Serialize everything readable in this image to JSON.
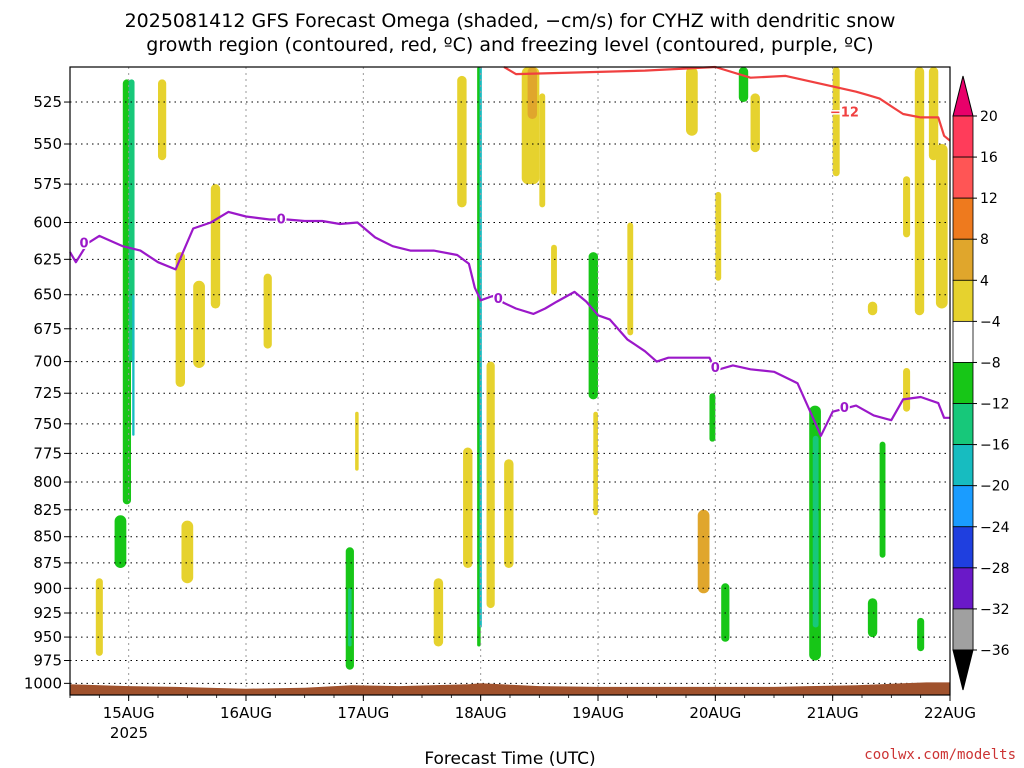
{
  "chart_data": {
    "type": "heatmap",
    "title_lines": [
      "2025081412 GFS Forecast Omega (shaded, −cm/s) for CYHZ with dendritic snow",
      "growth region (contoured, red, ºC) and freezing level (contoured, purple, ºC)"
    ],
    "xlabel": "Forecast Time (UTC)",
    "x_ticks": [
      "15AUG",
      "16AUG",
      "17AUG",
      "18AUG",
      "19AUG",
      "20AUG",
      "21AUG",
      "22AUG"
    ],
    "x_tick_sublabel": "2025",
    "x_range_days": [
      14.5,
      22.0
    ],
    "y_ticks": [
      525,
      550,
      575,
      600,
      625,
      650,
      675,
      700,
      725,
      750,
      775,
      800,
      825,
      850,
      875,
      900,
      925,
      950,
      975,
      1000
    ],
    "y_range_hpa": [
      505,
      1013
    ],
    "y_scale": "log-pressure",
    "grid": true,
    "colorbar": {
      "levels": [
        "20",
        "16",
        "12",
        "8",
        "4",
        "−4",
        "−8",
        "−12",
        "−16",
        "−20",
        "−24",
        "−28",
        "−32",
        "−36"
      ],
      "colors": [
        "#ff3c5a",
        "#ff5555",
        "#ee7a1e",
        "#e0a62c",
        "#e6d22e",
        "#ffffff",
        "#17c617",
        "#17c87a",
        "#17bcc0",
        "#1a9cff",
        "#1f3fdf",
        "#6a19c8",
        "#a010c0",
        "#a0a0a0",
        "#000000"
      ],
      "top_arrow_color": "#e8006a",
      "bottom_arrow_color": "#000000"
    },
    "contours": [
      {
        "color": "#9b18c9",
        "label": "0",
        "points": [
          [
            14.5,
            620
          ],
          [
            14.55,
            627
          ],
          [
            14.65,
            614
          ],
          [
            14.75,
            609
          ],
          [
            14.95,
            616
          ],
          [
            15.1,
            619
          ],
          [
            15.25,
            627
          ],
          [
            15.4,
            632
          ],
          [
            15.55,
            604
          ],
          [
            15.7,
            600
          ],
          [
            15.85,
            593
          ],
          [
            16.0,
            596
          ],
          [
            16.1,
            597
          ],
          [
            16.2,
            598
          ],
          [
            16.35,
            598
          ],
          [
            16.5,
            599
          ],
          [
            16.65,
            599
          ],
          [
            16.8,
            601
          ],
          [
            16.95,
            600
          ],
          [
            17.1,
            610
          ],
          [
            17.25,
            616
          ],
          [
            17.4,
            619
          ],
          [
            17.6,
            619
          ],
          [
            17.8,
            622
          ],
          [
            17.9,
            628
          ],
          [
            17.95,
            645
          ],
          [
            18.0,
            654
          ],
          [
            18.1,
            651
          ],
          [
            18.2,
            656
          ],
          [
            18.3,
            660
          ],
          [
            18.45,
            664
          ],
          [
            18.55,
            660
          ],
          [
            18.65,
            655
          ],
          [
            18.8,
            648
          ],
          [
            18.9,
            655
          ],
          [
            19.0,
            665
          ],
          [
            19.1,
            668
          ],
          [
            19.25,
            683
          ],
          [
            19.4,
            692
          ],
          [
            19.5,
            700
          ],
          [
            19.6,
            697
          ],
          [
            19.8,
            697
          ],
          [
            19.95,
            697
          ],
          [
            20.0,
            707
          ],
          [
            20.15,
            703
          ],
          [
            20.3,
            706
          ],
          [
            20.5,
            708
          ],
          [
            20.7,
            717
          ],
          [
            20.8,
            738
          ],
          [
            20.9,
            760
          ],
          [
            21.0,
            740
          ],
          [
            21.2,
            735
          ],
          [
            21.35,
            743
          ],
          [
            21.5,
            747
          ],
          [
            21.6,
            730
          ],
          [
            21.75,
            728
          ],
          [
            21.9,
            733
          ],
          [
            21.95,
            745
          ],
          [
            22.0,
            745
          ]
        ],
        "labels_at": [
          [
            14.62,
            614
          ],
          [
            16.3,
            598
          ],
          [
            18.15,
            653
          ],
          [
            20.0,
            705
          ],
          [
            21.1,
            737
          ]
        ]
      },
      {
        "color": "#f04040",
        "label": "−12",
        "points": [
          [
            18.2,
            505
          ],
          [
            18.3,
            509
          ],
          [
            19.4,
            507
          ],
          [
            20.0,
            505
          ],
          [
            20.3,
            511
          ],
          [
            20.6,
            510
          ],
          [
            20.8,
            513
          ],
          [
            21.0,
            516
          ],
          [
            21.2,
            519
          ],
          [
            21.3,
            521
          ],
          [
            21.4,
            523
          ],
          [
            21.6,
            532
          ],
          [
            21.75,
            534
          ],
          [
            21.9,
            534
          ],
          [
            21.95,
            545
          ],
          [
            22.0,
            548
          ]
        ],
        "labels_at": [
          [
            21.1,
            531
          ]
        ]
      }
    ],
    "omega_cells": [
      {
        "x": [
          14.95,
          15.02
        ],
        "p": [
          512,
          820
        ],
        "v": -8
      },
      {
        "x": [
          15.0,
          15.05
        ],
        "p": [
          512,
          700
        ],
        "v": -12
      },
      {
        "x": [
          15.03,
          15.05
        ],
        "p": [
          650,
          760
        ],
        "v": -16
      },
      {
        "x": [
          14.88,
          14.98
        ],
        "p": [
          830,
          880
        ],
        "v": -8
      },
      {
        "x": [
          14.72,
          14.78
        ],
        "p": [
          890,
          970
        ],
        "v": 4
      },
      {
        "x": [
          15.25,
          15.32
        ],
        "p": [
          512,
          560
        ],
        "v": 4
      },
      {
        "x": [
          15.4,
          15.48
        ],
        "p": [
          620,
          720
        ],
        "v": 4
      },
      {
        "x": [
          15.45,
          15.55
        ],
        "p": [
          835,
          895
        ],
        "v": 4
      },
      {
        "x": [
          15.55,
          15.65
        ],
        "p": [
          640,
          705
        ],
        "v": 4
      },
      {
        "x": [
          15.7,
          15.78
        ],
        "p": [
          575,
          660
        ],
        "v": 4
      },
      {
        "x": [
          16.15,
          16.22
        ],
        "p": [
          635,
          690
        ],
        "v": 4
      },
      {
        "x": [
          16.85,
          16.92
        ],
        "p": [
          860,
          985
        ],
        "v": -8
      },
      {
        "x": [
          16.87,
          16.9
        ],
        "p": [
          900,
          960
        ],
        "v": -12
      },
      {
        "x": [
          16.93,
          16.96
        ],
        "p": [
          740,
          790
        ],
        "v": 4
      },
      {
        "x": [
          17.6,
          17.68
        ],
        "p": [
          890,
          960
        ],
        "v": 4
      },
      {
        "x": [
          17.8,
          17.88
        ],
        "p": [
          510,
          590
        ],
        "v": 4
      },
      {
        "x": [
          17.85,
          17.93
        ],
        "p": [
          770,
          880
        ],
        "v": 4
      },
      {
        "x": [
          17.97,
          18.0
        ],
        "p": [
          505,
          960
        ],
        "v": -8
      },
      {
        "x": [
          17.99,
          18.01
        ],
        "p": [
          505,
          940
        ],
        "v": -16
      },
      {
        "x": [
          18.05,
          18.12
        ],
        "p": [
          700,
          920
        ],
        "v": 4
      },
      {
        "x": [
          18.2,
          18.28
        ],
        "p": [
          780,
          880
        ],
        "v": 4
      },
      {
        "x": [
          18.35,
          18.5
        ],
        "p": [
          505,
          575
        ],
        "v": 4
      },
      {
        "x": [
          18.4,
          18.48
        ],
        "p": [
          505,
          535
        ],
        "v": 8
      },
      {
        "x": [
          18.5,
          18.55
        ],
        "p": [
          520,
          590
        ],
        "v": 4
      },
      {
        "x": [
          18.6,
          18.65
        ],
        "p": [
          615,
          650
        ],
        "v": 4
      },
      {
        "x": [
          18.92,
          19.0
        ],
        "p": [
          620,
          730
        ],
        "v": -8
      },
      {
        "x": [
          18.96,
          19.0
        ],
        "p": [
          740,
          830
        ],
        "v": 4
      },
      {
        "x": [
          19.25,
          19.3
        ],
        "p": [
          600,
          680
        ],
        "v": 4
      },
      {
        "x": [
          19.75,
          19.85
        ],
        "p": [
          505,
          545
        ],
        "v": 4
      },
      {
        "x": [
          19.85,
          19.95
        ],
        "p": [
          825,
          905
        ],
        "v": 8
      },
      {
        "x": [
          19.95,
          20.0
        ],
        "p": [
          725,
          765
        ],
        "v": -8
      },
      {
        "x": [
          20.0,
          20.05
        ],
        "p": [
          580,
          640
        ],
        "v": 4
      },
      {
        "x": [
          20.05,
          20.12
        ],
        "p": [
          895,
          955
        ],
        "v": -8
      },
      {
        "x": [
          20.2,
          20.28
        ],
        "p": [
          505,
          525
        ],
        "v": -8
      },
      {
        "x": [
          20.3,
          20.38
        ],
        "p": [
          520,
          555
        ],
        "v": 4
      },
      {
        "x": [
          20.8,
          20.9
        ],
        "p": [
          735,
          975
        ],
        "v": -8
      },
      {
        "x": [
          20.83,
          20.88
        ],
        "p": [
          760,
          940
        ],
        "v": -12
      },
      {
        "x": [
          21.0,
          21.06
        ],
        "p": [
          505,
          570
        ],
        "v": 4
      },
      {
        "x": [
          21.3,
          21.38
        ],
        "p": [
          655,
          665
        ],
        "v": 4
      },
      {
        "x": [
          21.3,
          21.38
        ],
        "p": [
          910,
          950
        ],
        "v": -8
      },
      {
        "x": [
          21.4,
          21.45
        ],
        "p": [
          765,
          870
        ],
        "v": -8
      },
      {
        "x": [
          21.6,
          21.66
        ],
        "p": [
          570,
          610
        ],
        "v": 4
      },
      {
        "x": [
          21.6,
          21.66
        ],
        "p": [
          705,
          740
        ],
        "v": 4
      },
      {
        "x": [
          21.7,
          21.78
        ],
        "p": [
          505,
          665
        ],
        "v": 4
      },
      {
        "x": [
          21.72,
          21.78
        ],
        "p": [
          930,
          965
        ],
        "v": -8
      },
      {
        "x": [
          21.82,
          21.9
        ],
        "p": [
          505,
          560
        ],
        "v": 4
      },
      {
        "x": [
          21.88,
          21.98
        ],
        "p": [
          550,
          660
        ],
        "v": 4
      }
    ],
    "surface_colors": {
      "terrain": "#a0522d"
    },
    "surface_pressure_hpa": [
      [
        14.5,
        1001
      ],
      [
        15.0,
        1003
      ],
      [
        15.4,
        1004
      ],
      [
        16.0,
        1006
      ],
      [
        16.5,
        1005
      ],
      [
        16.9,
        1002
      ],
      [
        17.3,
        1003
      ],
      [
        17.9,
        1001
      ],
      [
        18.0,
        1000
      ],
      [
        18.5,
        1003
      ],
      [
        19.0,
        1004
      ],
      [
        19.5,
        1004
      ],
      [
        20.0,
        1004
      ],
      [
        20.5,
        1004
      ],
      [
        20.8,
        1003
      ],
      [
        21.2,
        1002
      ],
      [
        21.6,
        1000
      ],
      [
        21.8,
        999
      ],
      [
        22.0,
        999
      ]
    ],
    "credit": "coolwx.com/modelts"
  }
}
